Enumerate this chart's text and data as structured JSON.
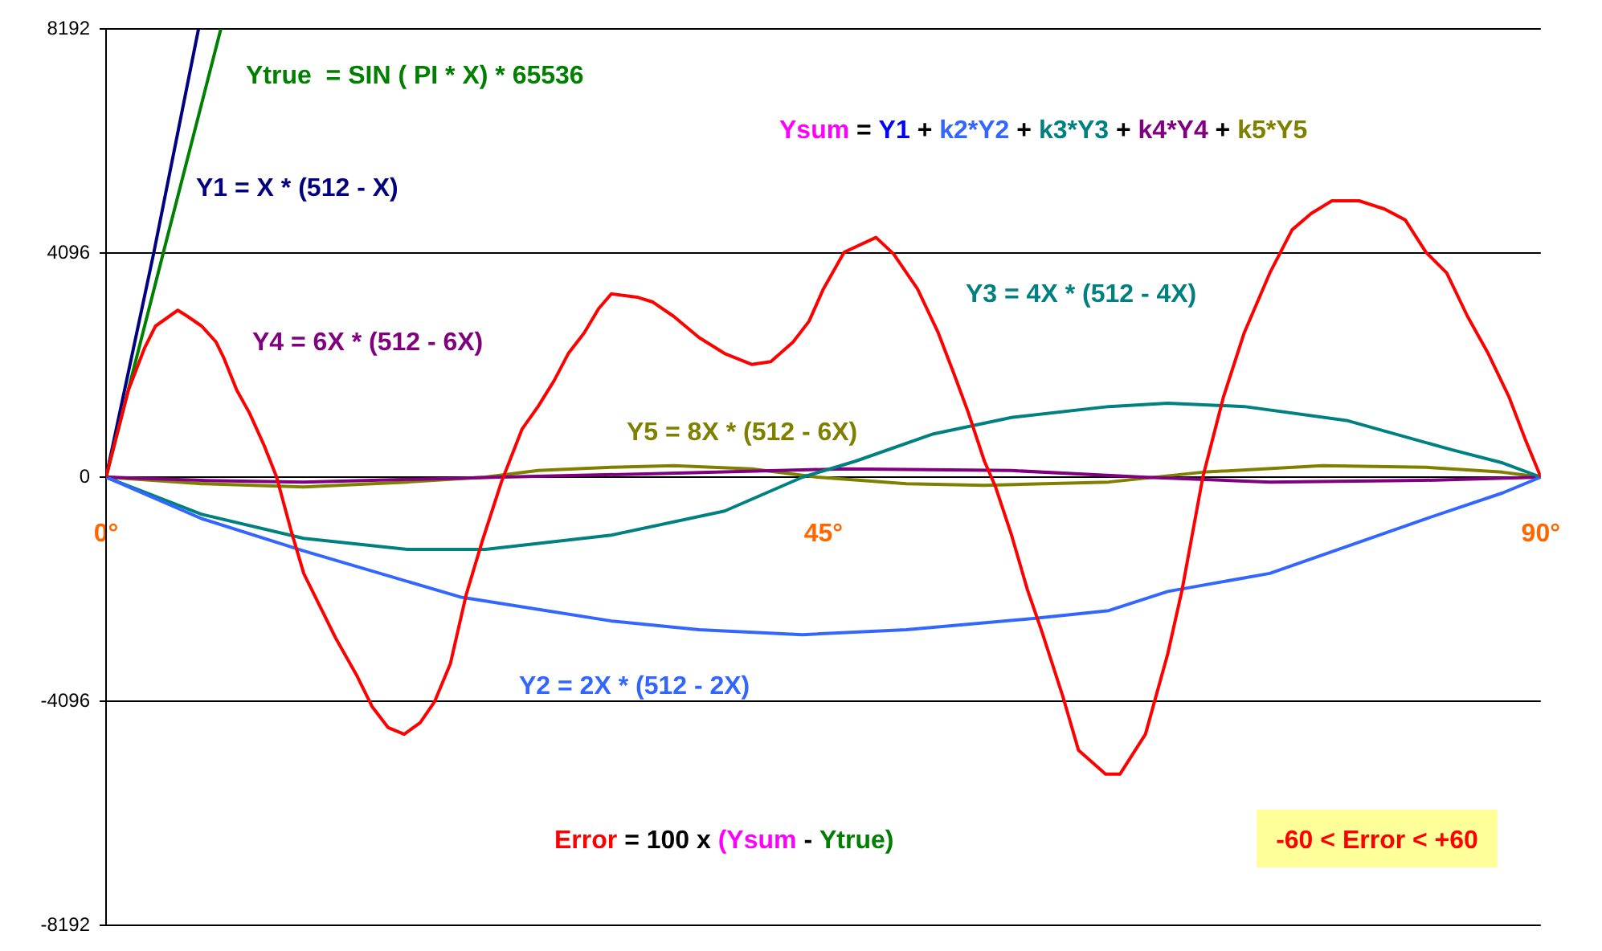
{
  "chart_data": {
    "type": "line",
    "xlim": [
      0,
      90
    ],
    "xticks": [
      {
        "value": 0,
        "label": "0°"
      },
      {
        "value": 45,
        "label": "45°"
      },
      {
        "value": 90,
        "label": "90°"
      }
    ],
    "ylim": [
      -8192,
      8192
    ],
    "yticks": [
      -8192,
      -4096,
      0,
      4096,
      8192
    ],
    "grid": "y",
    "marker": "none",
    "line_style": "solid",
    "legend": false,
    "annotations": [
      "Ysum = Y1 + k2*Y2 + k3*Y3 + k4*Y4 + k5*Y5",
      "Error = 100 x (Ysum - Ytrue)",
      "-60 < Error < +60"
    ],
    "series": [
      {
        "color": "#ff0000",
        "x": [
          0,
          1.4,
          2.4,
          3.1,
          4.5,
          5.1,
          6.0,
          6.9,
          7.4,
          8.2,
          9.0,
          9.9,
          10.7,
          11.6,
          12.4,
          13.4,
          14.4,
          15.7,
          16.7,
          17.7,
          18.7,
          19.7,
          20.6,
          21.6,
          22.6,
          23.6,
          24.8,
          26.1,
          27.1,
          28.1,
          29.0,
          30.0,
          30.9,
          31.7,
          33.3,
          34.3,
          35.6,
          37.2,
          38.8,
          40.5,
          41.7,
          43.1,
          44.1,
          45.0,
          46.3,
          48.3,
          49.4,
          50.9,
          52.2,
          53.2,
          54.1,
          55.1,
          55.8,
          56.8,
          57.8,
          58.7,
          60.0,
          61.0,
          62.7,
          63.6,
          65.2,
          66.6,
          67.5,
          68.8,
          70.1,
          71.4,
          73.0,
          74.4,
          75.6,
          76.9,
          78.6,
          80.2,
          81.5,
          82.8,
          84.1,
          85.4,
          86.7,
          88.0,
          89.0,
          90
        ],
        "values": [
          0,
          1590,
          2350,
          2760,
          3050,
          2940,
          2760,
          2470,
          2170,
          1590,
          1170,
          590,
          0,
          -970,
          -1760,
          -2350,
          -2940,
          -3610,
          -4200,
          -4580,
          -4700,
          -4490,
          -4110,
          -3410,
          -2140,
          -1170,
          -90,
          880,
          1290,
          1760,
          2260,
          2640,
          3080,
          3350,
          3290,
          3200,
          2940,
          2550,
          2260,
          2060,
          2110,
          2470,
          2850,
          3440,
          4110,
          4380,
          4080,
          3440,
          2640,
          1880,
          1170,
          290,
          -180,
          -1060,
          -2060,
          -2820,
          -3990,
          -4990,
          -5430,
          -5430,
          -4700,
          -3230,
          -2060,
          0,
          1470,
          2640,
          3730,
          4520,
          4820,
          5050,
          5050,
          4900,
          4700,
          4110,
          3730,
          2940,
          2260,
          1470,
          710,
          0
        ]
      },
      {
        "name": "Ytrue  = SIN ( PI * X) * 65536",
        "color": "#008000",
        "x": [
          0,
          3.6,
          7.2
        ],
        "values": [
          0,
          4110,
          8192
        ]
      },
      {
        "name": "Y1 = X * (512 - X)",
        "color": "#000080",
        "x": [
          0,
          3.0,
          5.8
        ],
        "values": [
          0,
          4110,
          8192
        ]
      },
      {
        "name": "Y2 = 2X * (512 - 2X)",
        "color": "#3366ff",
        "x": [
          0,
          6.0,
          12.4,
          22.2,
          31.7,
          37.2,
          43.7,
          50.2,
          58.3,
          62.9,
          66.6,
          73.0,
          77.9,
          82.8,
          87.6,
          90
        ],
        "values": [
          0,
          -760,
          -1350,
          -2190,
          -2630,
          -2790,
          -2880,
          -2790,
          -2580,
          -2440,
          -2090,
          -1760,
          -1260,
          -760,
          -290,
          0
        ]
      },
      {
        "name": "Y3 = 4X * (512 - 4X)",
        "color": "#008080",
        "x": [
          0,
          6.0,
          12.4,
          18.9,
          23.8,
          31.7,
          38.8,
          43.7,
          47.0,
          51.9,
          56.8,
          62.9,
          66.6,
          71.4,
          77.9,
          84.4,
          87.6,
          90
        ],
        "values": [
          0,
          -680,
          -1120,
          -1320,
          -1320,
          -1060,
          -620,
          0,
          290,
          790,
          1090,
          1290,
          1350,
          1290,
          1030,
          500,
          260,
          0
        ]
      },
      {
        "name": "Y4 = 6X * (512 - 6X)",
        "color": "#800080",
        "x": [
          0,
          6.0,
          12.4,
          24.8,
          33.9,
          46.3,
          56.8,
          65.0,
          73.0,
          82.6,
          90
        ],
        "values": [
          0,
          -60,
          -90,
          0,
          60,
          150,
          120,
          0,
          -90,
          -60,
          0
        ]
      },
      {
        "name": "Y5 = 8X * (512 - 6X)",
        "color": "#808000",
        "x": [
          0,
          6.0,
          12.4,
          18.9,
          23.8,
          27.1,
          31.7,
          35.6,
          40.5,
          44.6,
          50.2,
          55.1,
          62.9,
          68.8,
          76.3,
          82.8,
          87.6,
          90
        ],
        "values": [
          0,
          -120,
          -180,
          -90,
          0,
          120,
          180,
          210,
          150,
          0,
          -120,
          -150,
          -90,
          90,
          210,
          180,
          90,
          0
        ]
      }
    ]
  }
}
